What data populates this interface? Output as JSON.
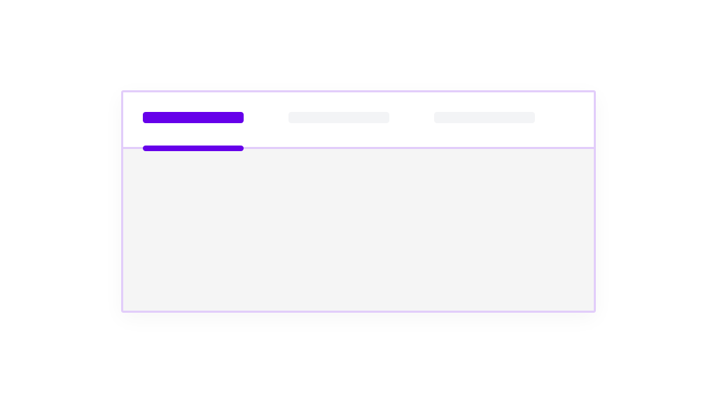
{
  "tabs": [
    {
      "label": "",
      "active": true
    },
    {
      "label": "",
      "active": false
    },
    {
      "label": "",
      "active": false
    }
  ],
  "colors": {
    "accent": "#6600ea",
    "inactive_placeholder": "#f3f4f6",
    "border": "#e2cdfa",
    "panel_background": "#f5f5f5"
  }
}
